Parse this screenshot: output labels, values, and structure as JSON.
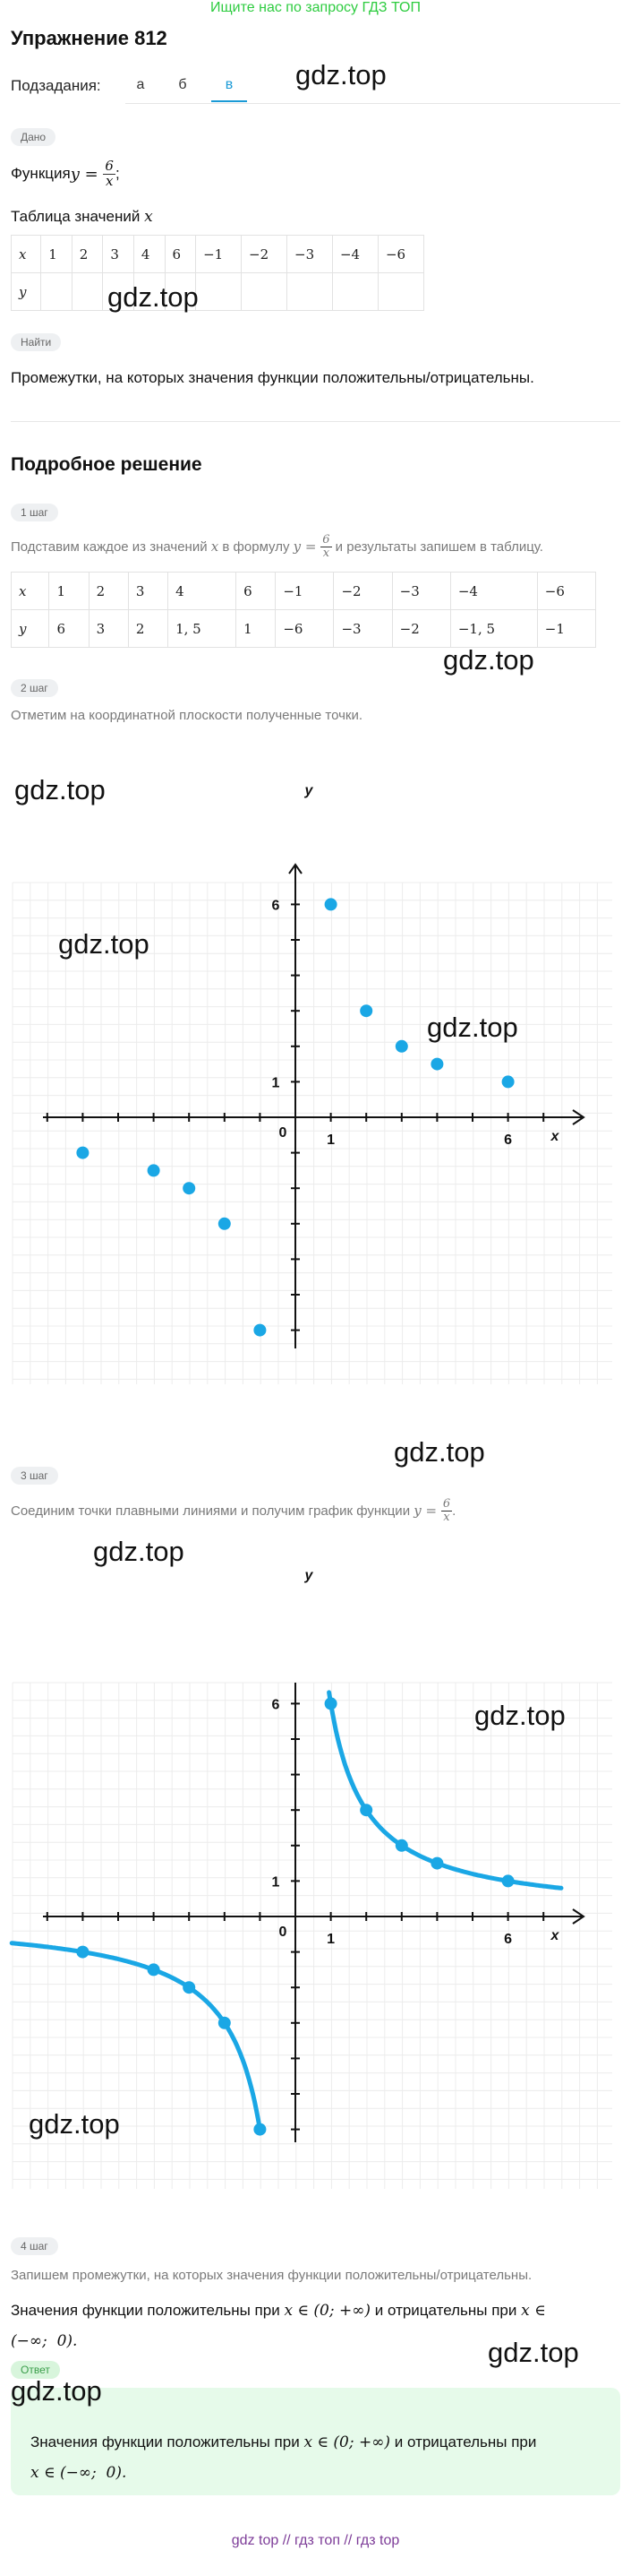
{
  "banner": "Ищите нас по запросу ГДЗ ТОП",
  "title": "Упражнение 812",
  "subtasks": {
    "label": "Подзадания:",
    "items": [
      "а",
      "б",
      "в"
    ],
    "active": "в"
  },
  "watermark": "gdz.top",
  "given": {
    "pill": "Дано",
    "function_prefix": "Функция ",
    "y": "y",
    "eq": " = ",
    "num": "6",
    "den": "x",
    "semicolon": ";",
    "table_caption_prefix": "Таблица значений ",
    "table_caption_var": "x",
    "table_x": [
      "x",
      "1",
      "2",
      "3",
      "4",
      "6",
      "−1",
      "−2",
      "−3",
      "−4",
      "−6"
    ],
    "table_y": [
      "y",
      "",
      "",
      "",
      "",
      "",
      "",
      "",
      "",
      "",
      ""
    ]
  },
  "find": {
    "pill": "Найти",
    "text": "Промежутки, на которых значения функции положительны/отрицательны."
  },
  "solution_title": "Подробное решение",
  "step1": {
    "pill": "1 шаг",
    "text_prefix": "Подставим каждое из значений ",
    "text_var": "x",
    "text_mid": " в формулу ",
    "text_suffix": " и результаты запишем в таблицу.",
    "table_x": [
      "x",
      "1",
      "2",
      "3",
      "4",
      "6",
      "−1",
      "−2",
      "−3",
      "−4",
      "−6"
    ],
    "table_y": [
      "y",
      "6",
      "3",
      "2",
      "1, 5",
      "1",
      "−6",
      "−3",
      "−2",
      "−1, 5",
      "−1"
    ]
  },
  "step2": {
    "pill": "2 шаг",
    "text": "Отметим на координатной плоскости полученные точки."
  },
  "step3": {
    "pill": "3 шаг",
    "text_prefix": "Соединим точки плавными линиями и получим график функции ",
    "text_suffix": "."
  },
  "step4": {
    "pill": "4 шаг",
    "text": "Запишем промежутки, на которых значения функции положительны/отрицательны.",
    "conclusion_1": "Значения функции положительны при ",
    "conclusion_int1": "x ∈ (0; +∞)",
    "conclusion_2": " и отрицательны при ",
    "conclusion_x": "x ∈",
    "conclusion_int2": "(−∞;  0).",
    "answer_pill": "Ответ",
    "answer_1": "Значения функции положительны при ",
    "answer_int1": "x ∈ (0; +∞)",
    "answer_2": " и отрицательны при",
    "answer_int2": "x ∈ (−∞;  0)."
  },
  "chart_data": [
    {
      "type": "scatter",
      "xlabel": "x",
      "ylabel": "y",
      "tick_labels": {
        "origin": "0",
        "x": [
          "1",
          "6"
        ],
        "y": [
          "1",
          "6"
        ]
      },
      "points": [
        [
          1,
          6
        ],
        [
          2,
          3
        ],
        [
          3,
          2
        ],
        [
          4,
          1.5
        ],
        [
          6,
          1
        ],
        [
          -1,
          -6
        ],
        [
          -2,
          -3
        ],
        [
          -3,
          -2
        ],
        [
          -4,
          -1.5
        ],
        [
          -6,
          -1
        ]
      ],
      "grid": true,
      "color": "#1aa7e5"
    },
    {
      "type": "line",
      "xlabel": "x",
      "ylabel": "y",
      "tick_labels": {
        "origin": "0",
        "x": [
          "1",
          "6"
        ],
        "y": [
          "1",
          "6"
        ]
      },
      "points": [
        [
          1,
          6
        ],
        [
          2,
          3
        ],
        [
          3,
          2
        ],
        [
          4,
          1.5
        ],
        [
          6,
          1
        ],
        [
          -1,
          -6
        ],
        [
          -2,
          -3
        ],
        [
          -3,
          -2
        ],
        [
          -4,
          -1.5
        ],
        [
          -6,
          -1
        ]
      ],
      "function": "y = 6/x",
      "grid": true,
      "color": "#1aa7e5"
    }
  ],
  "footer": "gdz top  //  гдз топ  //  гдз top"
}
